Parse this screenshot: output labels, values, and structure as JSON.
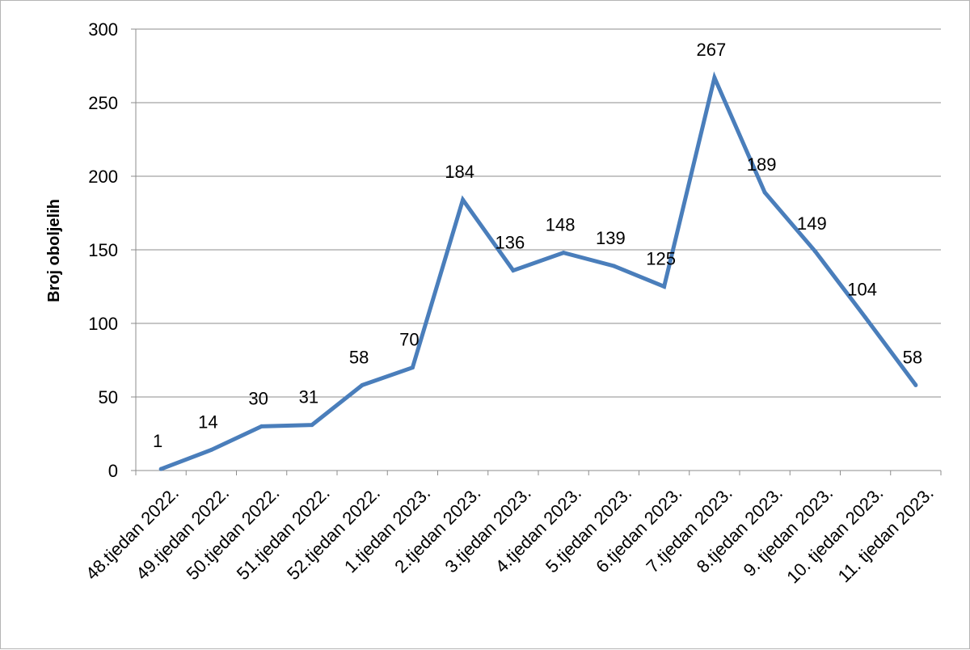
{
  "chart_data": {
    "type": "line",
    "title": "",
    "xlabel": "",
    "ylabel": "Broj oboljelih",
    "ylim": [
      0,
      300
    ],
    "yticks": [
      0,
      50,
      100,
      150,
      200,
      250,
      300
    ],
    "grid": true,
    "legend": "none",
    "line_color": "#4a7ebb",
    "categories": [
      "48.tjedan 2022.",
      "49.tjedan 2022.",
      "50.tjedan 2022.",
      "51.tjedan 2022.",
      "52.tjedan 2022.",
      "1.tjedan 2023.",
      "2.tjedan 2023.",
      "3.tjedan 2023.",
      "4.tjedan 2023.",
      "5.tjedan 2023.",
      "6.tjedan 2023.",
      "7.tjedan 2023.",
      "8.tjedan 2023.",
      "9. tjedan 2023.",
      "10. tjedan 2023.",
      "11. tjedan 2023."
    ],
    "values": [
      1,
      14,
      30,
      31,
      58,
      70,
      184,
      136,
      148,
      139,
      125,
      267,
      189,
      149,
      104,
      58
    ]
  }
}
